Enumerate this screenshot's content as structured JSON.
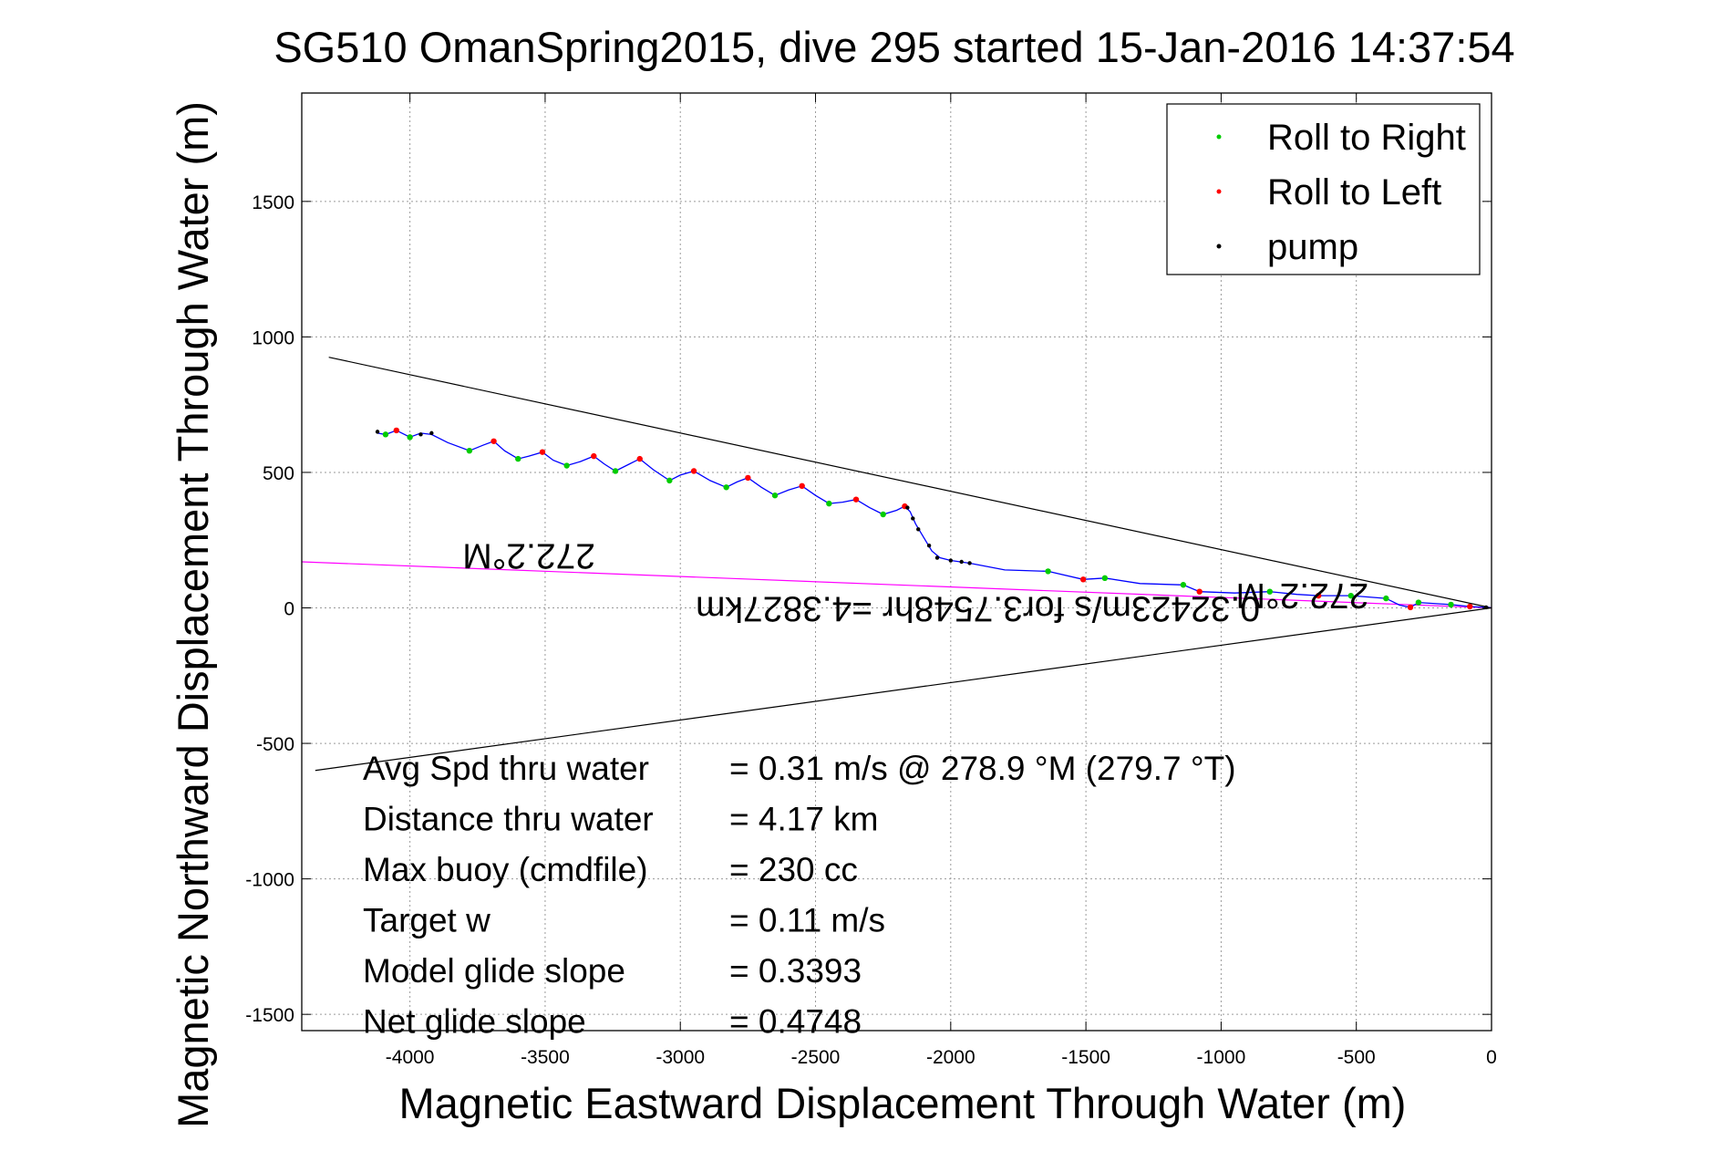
{
  "chart_data": {
    "type": "scatter",
    "title": "SG510 OmanSpring2015, dive 295 started 15-Jan-2016 14:37:54",
    "xlabel": "Magnetic Eastward Displacement Through Water (m)",
    "ylabel": "Magnetic Northward Displacement Through Water (m)",
    "xlim": [
      -4400,
      0
    ],
    "ylim": [
      -1560,
      1900
    ],
    "grid": true,
    "legend_position": "top-right",
    "x_ticks": [
      -4000,
      -3500,
      -3000,
      -2500,
      -2000,
      -1500,
      -1000,
      -500,
      0
    ],
    "x_tick_labels": [
      "-4000",
      "-3500",
      "-3000",
      "-2500",
      "-2000",
      "-1500",
      "-1000",
      "-500",
      "0"
    ],
    "y_ticks": [
      -1500,
      -1000,
      -500,
      0,
      500,
      1000,
      1500
    ],
    "y_tick_labels": [
      "-1500",
      "-1000",
      "-500",
      "0",
      "500",
      "1000",
      "1500"
    ],
    "colors": {
      "track": "#0000ff",
      "roll_right": "#00cc00",
      "roll_left": "#ff0000",
      "pump": "#000000",
      "envelope": "#000000",
      "net_heading": "#ff00ff"
    },
    "series": [
      {
        "name": "Roll to Right",
        "color": "#00cc00",
        "points": [
          [
            -4090,
            640
          ],
          [
            -4000,
            630
          ],
          [
            -3780,
            580
          ],
          [
            -3600,
            550
          ],
          [
            -3420,
            525
          ],
          [
            -3240,
            505
          ],
          [
            -3040,
            470
          ],
          [
            -2830,
            445
          ],
          [
            -2650,
            415
          ],
          [
            -2450,
            385
          ],
          [
            -2250,
            345
          ],
          [
            -1640,
            135
          ],
          [
            -1430,
            110
          ],
          [
            -1140,
            85
          ],
          [
            -820,
            60
          ],
          [
            -520,
            45
          ],
          [
            -390,
            35
          ],
          [
            -270,
            20
          ],
          [
            -150,
            12
          ]
        ]
      },
      {
        "name": "Roll to Left",
        "color": "#ff0000",
        "points": [
          [
            -4050,
            655
          ],
          [
            -3690,
            615
          ],
          [
            -3510,
            575
          ],
          [
            -3320,
            560
          ],
          [
            -3150,
            550
          ],
          [
            -2950,
            505
          ],
          [
            -2750,
            480
          ],
          [
            -2550,
            450
          ],
          [
            -2350,
            400
          ],
          [
            -2170,
            375
          ],
          [
            -1510,
            105
          ],
          [
            -1080,
            60
          ],
          [
            -640,
            45
          ],
          [
            -300,
            2
          ],
          [
            -80,
            5
          ]
        ]
      },
      {
        "name": "pump",
        "color": "#000000",
        "points": [
          [
            -4120,
            650
          ],
          [
            -3960,
            640
          ],
          [
            -3920,
            645
          ],
          [
            -2160,
            370
          ],
          [
            -2140,
            330
          ],
          [
            -2120,
            290
          ],
          [
            -2080,
            230
          ],
          [
            -2050,
            185
          ],
          [
            -2000,
            175
          ],
          [
            -1960,
            170
          ],
          [
            -1930,
            165
          ],
          [
            -20,
            2
          ]
        ]
      }
    ],
    "track": [
      [
        -4120,
        645
      ],
      [
        -4090,
        640
      ],
      [
        -4050,
        655
      ],
      [
        -4000,
        630
      ],
      [
        -3960,
        645
      ],
      [
        -3920,
        640
      ],
      [
        -3860,
        610
      ],
      [
        -3780,
        580
      ],
      [
        -3730,
        600
      ],
      [
        -3690,
        615
      ],
      [
        -3650,
        580
      ],
      [
        -3600,
        550
      ],
      [
        -3560,
        560
      ],
      [
        -3510,
        575
      ],
      [
        -3470,
        545
      ],
      [
        -3420,
        525
      ],
      [
        -3370,
        540
      ],
      [
        -3320,
        560
      ],
      [
        -3280,
        530
      ],
      [
        -3240,
        505
      ],
      [
        -3190,
        530
      ],
      [
        -3150,
        550
      ],
      [
        -3100,
        510
      ],
      [
        -3040,
        470
      ],
      [
        -3000,
        490
      ],
      [
        -2950,
        505
      ],
      [
        -2890,
        470
      ],
      [
        -2830,
        445
      ],
      [
        -2790,
        465
      ],
      [
        -2750,
        480
      ],
      [
        -2700,
        445
      ],
      [
        -2650,
        415
      ],
      [
        -2600,
        435
      ],
      [
        -2550,
        450
      ],
      [
        -2500,
        415
      ],
      [
        -2450,
        385
      ],
      [
        -2400,
        390
      ],
      [
        -2350,
        400
      ],
      [
        -2300,
        370
      ],
      [
        -2250,
        345
      ],
      [
        -2200,
        360
      ],
      [
        -2170,
        375
      ],
      [
        -2150,
        355
      ],
      [
        -2130,
        310
      ],
      [
        -2100,
        260
      ],
      [
        -2070,
        210
      ],
      [
        -2040,
        185
      ],
      [
        -2000,
        175
      ],
      [
        -1930,
        165
      ],
      [
        -1800,
        140
      ],
      [
        -1640,
        135
      ],
      [
        -1510,
        105
      ],
      [
        -1430,
        110
      ],
      [
        -1300,
        90
      ],
      [
        -1140,
        85
      ],
      [
        -1080,
        60
      ],
      [
        -950,
        55
      ],
      [
        -820,
        60
      ],
      [
        -720,
        50
      ],
      [
        -640,
        45
      ],
      [
        -520,
        45
      ],
      [
        -390,
        35
      ],
      [
        -340,
        10
      ],
      [
        -300,
        2
      ],
      [
        -270,
        20
      ],
      [
        -150,
        12
      ],
      [
        -80,
        5
      ],
      [
        -20,
        2
      ],
      [
        0,
        0
      ]
    ],
    "lines": [
      {
        "name": "upper-envelope",
        "from": [
          -4300,
          925
        ],
        "to": [
          0,
          0
        ]
      },
      {
        "name": "lower-envelope",
        "from": [
          -4350,
          -600
        ],
        "to": [
          0,
          0
        ]
      },
      {
        "name": "net-heading",
        "from": [
          -4400,
          170
        ],
        "to": [
          0,
          0
        ]
      }
    ],
    "annotations": [
      {
        "text": "272.2°M",
        "x": -3560,
        "y": 235,
        "orientation": "rotated-180"
      },
      {
        "text": "272.2°M",
        "x": -700,
        "y": 90,
        "orientation": "rotated-180"
      },
      {
        "text": "0.32423m/s for3.7548hr =4.3827km",
        "x": -1900,
        "y": 40,
        "orientation": "rotated-180"
      }
    ],
    "stats": [
      {
        "label": "Avg Spd thru water",
        "value": "=  0.31 m/s @ 278.9 °M (279.7 °T)"
      },
      {
        "label": "Distance thru water",
        "value": "=  4.17 km"
      },
      {
        "label": "Max buoy (cmdfile)",
        "value": "= 230 cc"
      },
      {
        "label": "Target w",
        "value": "= 0.11 m/s"
      },
      {
        "label": "Model glide slope",
        "value": "= 0.3393"
      },
      {
        "label": "Net glide slope",
        "value": "= 0.4748"
      }
    ]
  }
}
